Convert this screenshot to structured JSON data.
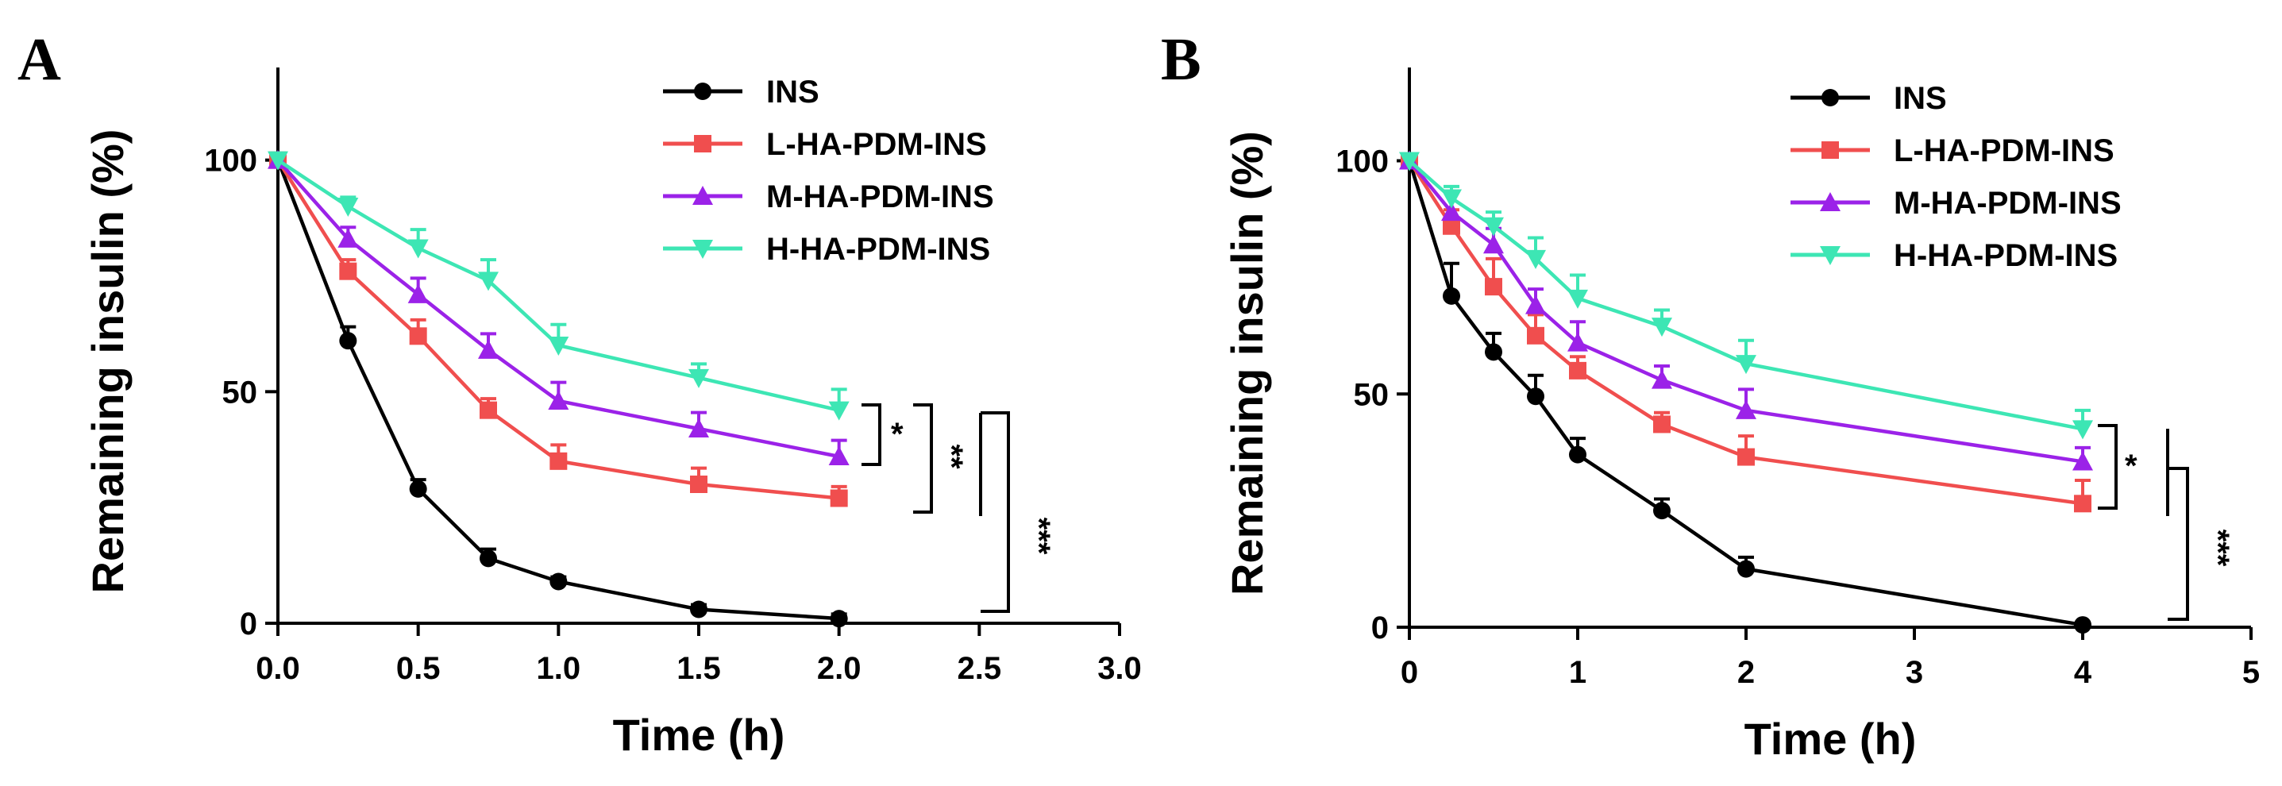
{
  "chart_data": [
    {
      "type": "line",
      "panel_label": "A",
      "xlabel": "Time (h)",
      "ylabel": "Remaining insulin (%)",
      "xlim": [
        0,
        3
      ],
      "ylim": [
        0,
        120
      ],
      "xticks": [
        0,
        0.5,
        1,
        1.5,
        2,
        2.5,
        3
      ],
      "xtick_labels": [
        "0.0",
        "0.5",
        "1.0",
        "1.5",
        "2.0",
        "2.5",
        "3.0"
      ],
      "yticks": [
        0,
        50,
        100
      ],
      "ytick_labels": [
        "0",
        "50",
        "100"
      ],
      "legend_position": "top-center",
      "series": [
        {
          "name": "INS",
          "color": "#000000",
          "marker": "circle",
          "x": [
            0,
            0.25,
            0.5,
            0.75,
            1.0,
            1.5,
            2.0
          ],
          "y": [
            100,
            61,
            29,
            14,
            9,
            3,
            1
          ],
          "err": [
            0,
            3,
            2,
            2,
            1,
            1,
            1
          ]
        },
        {
          "name": "L-HA-PDM-INS",
          "color": "#f04e4e",
          "marker": "square",
          "x": [
            0,
            0.25,
            0.5,
            0.75,
            1.0,
            1.5,
            2.0
          ],
          "y": [
            100,
            76,
            62,
            46,
            35,
            30,
            27
          ],
          "err": [
            0,
            2.5,
            3.5,
            2.5,
            3.5,
            3.5,
            2.5
          ]
        },
        {
          "name": "M-HA-PDM-INS",
          "color": "#9b22e8",
          "marker": "triangle-up",
          "x": [
            0,
            0.25,
            0.5,
            0.75,
            1.0,
            1.5,
            2.0
          ],
          "y": [
            100,
            83,
            71,
            59,
            48,
            42,
            36
          ],
          "err": [
            0,
            2.5,
            3.5,
            3.5,
            4,
            3.5,
            3.5
          ]
        },
        {
          "name": "H-HA-PDM-INS",
          "color": "#3de6b4",
          "marker": "triangle-down",
          "x": [
            0,
            0.25,
            0.5,
            0.75,
            1.0,
            1.5,
            2.0
          ],
          "y": [
            100,
            90,
            81,
            74,
            60,
            53,
            46
          ],
          "err": [
            0,
            2,
            4,
            4.5,
            4.5,
            3,
            4.5
          ]
        }
      ],
      "significance": [
        {
          "label": "*",
          "between": [
            "H-HA-PDM-INS",
            "M-HA-PDM-INS"
          ]
        },
        {
          "label": "**",
          "between": [
            "H-HA-PDM-INS",
            "L-HA-PDM-INS"
          ]
        },
        {
          "label": "***",
          "between": [
            "HA-PDM-INS groups",
            "INS"
          ]
        }
      ]
    },
    {
      "type": "line",
      "panel_label": "B",
      "xlabel": "Time (h)",
      "ylabel": "Remaining insulin (%)",
      "xlim": [
        0,
        5
      ],
      "ylim": [
        0,
        120
      ],
      "xticks": [
        0,
        1,
        2,
        3,
        4,
        5
      ],
      "xtick_labels": [
        "0",
        "1",
        "2",
        "3",
        "4",
        "5"
      ],
      "yticks": [
        0,
        50,
        100
      ],
      "ytick_labels": [
        "0",
        "50",
        "100"
      ],
      "legend_position": "top-center",
      "series": [
        {
          "name": "INS",
          "color": "#000000",
          "marker": "circle",
          "x": [
            0,
            0.25,
            0.5,
            0.75,
            1.0,
            1.5,
            2.0,
            4.0
          ],
          "y": [
            100,
            71,
            59,
            49.5,
            37,
            25,
            12.5,
            0.5
          ],
          "err": [
            0,
            7,
            4,
            4.5,
            3.5,
            2.5,
            2.5,
            0.5
          ]
        },
        {
          "name": "L-HA-PDM-INS",
          "color": "#f04e4e",
          "marker": "square",
          "x": [
            0,
            0.25,
            0.5,
            0.75,
            1.0,
            1.5,
            2.0,
            4.0
          ],
          "y": [
            100,
            86,
            73,
            62.5,
            55,
            43.5,
            36.5,
            26.5
          ],
          "err": [
            0,
            3.5,
            6,
            4.5,
            3,
            2.5,
            4.5,
            5
          ]
        },
        {
          "name": "M-HA-PDM-INS",
          "color": "#9b22e8",
          "marker": "triangle-up",
          "x": [
            0,
            0.25,
            0.5,
            0.75,
            1.0,
            1.5,
            2.0,
            4.0
          ],
          "y": [
            100,
            89,
            82,
            69,
            61,
            53,
            46.5,
            35.5
          ],
          "err": [
            0,
            4.5,
            3.5,
            3.5,
            4.5,
            3,
            4.5,
            3
          ]
        },
        {
          "name": "H-HA-PDM-INS",
          "color": "#3de6b4",
          "marker": "triangle-down",
          "x": [
            0,
            0.25,
            0.5,
            0.75,
            1.0,
            1.5,
            2.0,
            4.0
          ],
          "y": [
            100,
            92,
            86,
            79,
            70.5,
            64.5,
            56.5,
            42.5
          ],
          "err": [
            0,
            2.5,
            3,
            4.5,
            5,
            3.5,
            5,
            4
          ]
        }
      ],
      "significance": [
        {
          "label": "*",
          "between": [
            "H-HA-PDM-INS",
            "L-HA-PDM-INS"
          ]
        },
        {
          "label": "***",
          "between": [
            "HA-PDM-INS groups",
            "INS"
          ]
        }
      ]
    }
  ]
}
